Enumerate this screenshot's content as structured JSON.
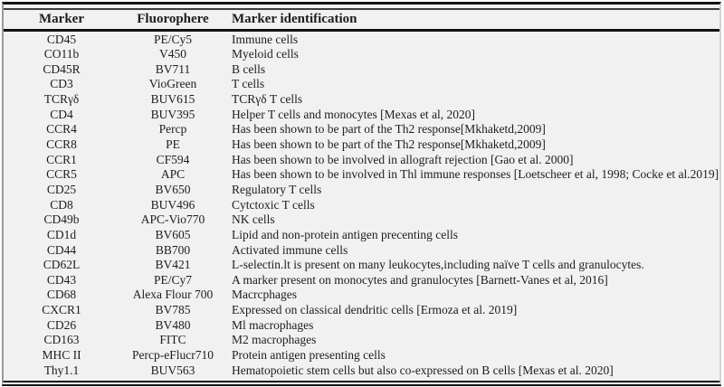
{
  "table": {
    "headers": [
      "Marker",
      "Fluorophere",
      "Marker identification"
    ],
    "rows": [
      {
        "marker": "CD45",
        "fluorophore": "PE/Cy5",
        "identification": "Immune cells"
      },
      {
        "marker": "CO11b",
        "fluorophore": "V450",
        "identification": "Myeloid cells"
      },
      {
        "marker": "CD45R",
        "fluorophore": "BV711",
        "identification": "B cells"
      },
      {
        "marker": "CD3",
        "fluorophore": "VioGreen",
        "identification": "T cells"
      },
      {
        "marker": "TCRγδ",
        "fluorophore": "BUV615",
        "identification": "TCRγδ T cells"
      },
      {
        "marker": "CD4",
        "fluorophore": "BUV395",
        "identification": "Helper T cells and monocytes [Mexas et al, 2020]"
      },
      {
        "marker": "CCR4",
        "fluorophore": "Percp",
        "identification": "Has been shown to be part of the Th2 response[Mkhaketd,2009]"
      },
      {
        "marker": "CCR8",
        "fluorophore": "PE",
        "identification": "Has been shown to be part of the Th2 response[Mkhaketd,2009]"
      },
      {
        "marker": "CCR1",
        "fluorophore": "CF594",
        "identification": "Has been shown to be involved in allograft rejection [Gao et al. 2000]"
      },
      {
        "marker": "CCR5",
        "fluorophore": "APC",
        "identification": "Has been shown to be involved in Thl immune responses [Loetscheer et al, 1998; Cocke et al.2019]"
      },
      {
        "marker": "CD25",
        "fluorophore": "BV650",
        "identification": "Regulatory T cells"
      },
      {
        "marker": "CD8",
        "fluorophore": "BUV496",
        "identification": "Cytctoxic T cells"
      },
      {
        "marker": "CD49b",
        "fluorophore": "APC-Vio770",
        "identification": "NK cells"
      },
      {
        "marker": "CD1d",
        "fluorophore": "BV605",
        "identification": "Lipid and non-protein antigen precenting cells"
      },
      {
        "marker": "CD44",
        "fluorophore": "BB700",
        "identification": "Activated immune cells"
      },
      {
        "marker": "CD62L",
        "fluorophore": "BV421",
        "identification": "L-selectin.lt is present on many leukocytes,including naïve T cells and granulocytes."
      },
      {
        "marker": "CD43",
        "fluorophore": "PE/Cy7",
        "identification": "A marker present on monocytes and granulocytes [Barnett-Vanes et al, 2016]"
      },
      {
        "marker": "CD68",
        "fluorophore": "Alexa Flour 700",
        "identification": "Macrcphages"
      },
      {
        "marker": "CXCR1",
        "fluorophore": "BV785",
        "identification": "Expressed on classical dendritic cells [Ermoza et al. 2019]"
      },
      {
        "marker": "CD26",
        "fluorophore": "BV480",
        "identification": "Ml macrophages"
      },
      {
        "marker": "CD163",
        "fluorophore": "FITC",
        "identification": "M2 macrophages"
      },
      {
        "marker": "MHC II",
        "fluorophore": "Percp-eFlucr710",
        "identification": "Protein antigen presenting cells"
      },
      {
        "marker": "Thy1.1",
        "fluorophore": "BUV563",
        "identification": "Hematopoietic stem cells but also co-expressed on B cells [Mexas et al. 2020]"
      }
    ]
  },
  "colors": {
    "table_background": "#f1f1f1",
    "text": "#1d1d1d",
    "rule_dark": "#141414",
    "side_border": "#9a9a9a"
  }
}
